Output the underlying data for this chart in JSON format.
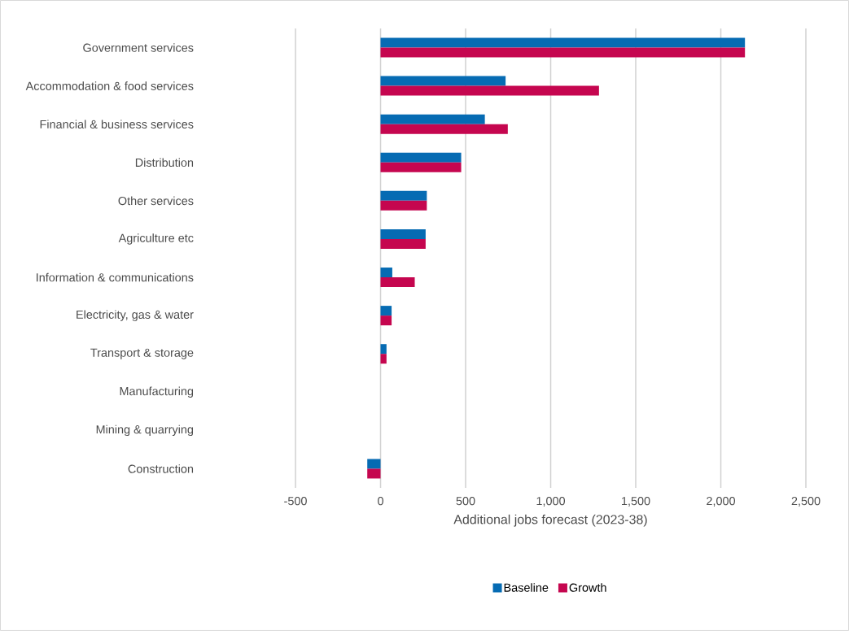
{
  "chart_data": {
    "type": "bar",
    "orientation": "horizontal",
    "xlabel": "Additional jobs forecast (2023-38)",
    "categories": [
      "Government services",
      "Accommodation & food services",
      "Financial & business services",
      "Distribution",
      "Other services",
      "Agriculture etc",
      "Information & communications",
      "Electricity, gas & water",
      "Transport & storage",
      "Manufacturing",
      "Mining & quarrying",
      "Construction"
    ],
    "series": [
      {
        "name": "Baseline",
        "color": "#066bb3",
        "values": [
          2142,
          735,
          613,
          474,
          272,
          265,
          69,
          65,
          35,
          0,
          0,
          -78
        ]
      },
      {
        "name": "Growth",
        "color": "#c5064f",
        "values": [
          2142,
          1284,
          748,
          474,
          272,
          265,
          201,
          65,
          35,
          0,
          0,
          -78
        ]
      }
    ],
    "xlim": [
      -500,
      2500
    ],
    "xticks": [
      -500,
      0,
      500,
      {
        "value": 1000,
        "label": "1,000"
      },
      {
        "value": 1500,
        "label": "1,500"
      },
      {
        "value": 2000,
        "label": "2,000"
      },
      {
        "value": 2500,
        "label": "2,500"
      }
    ],
    "grid": "x",
    "legend": "bottom"
  }
}
